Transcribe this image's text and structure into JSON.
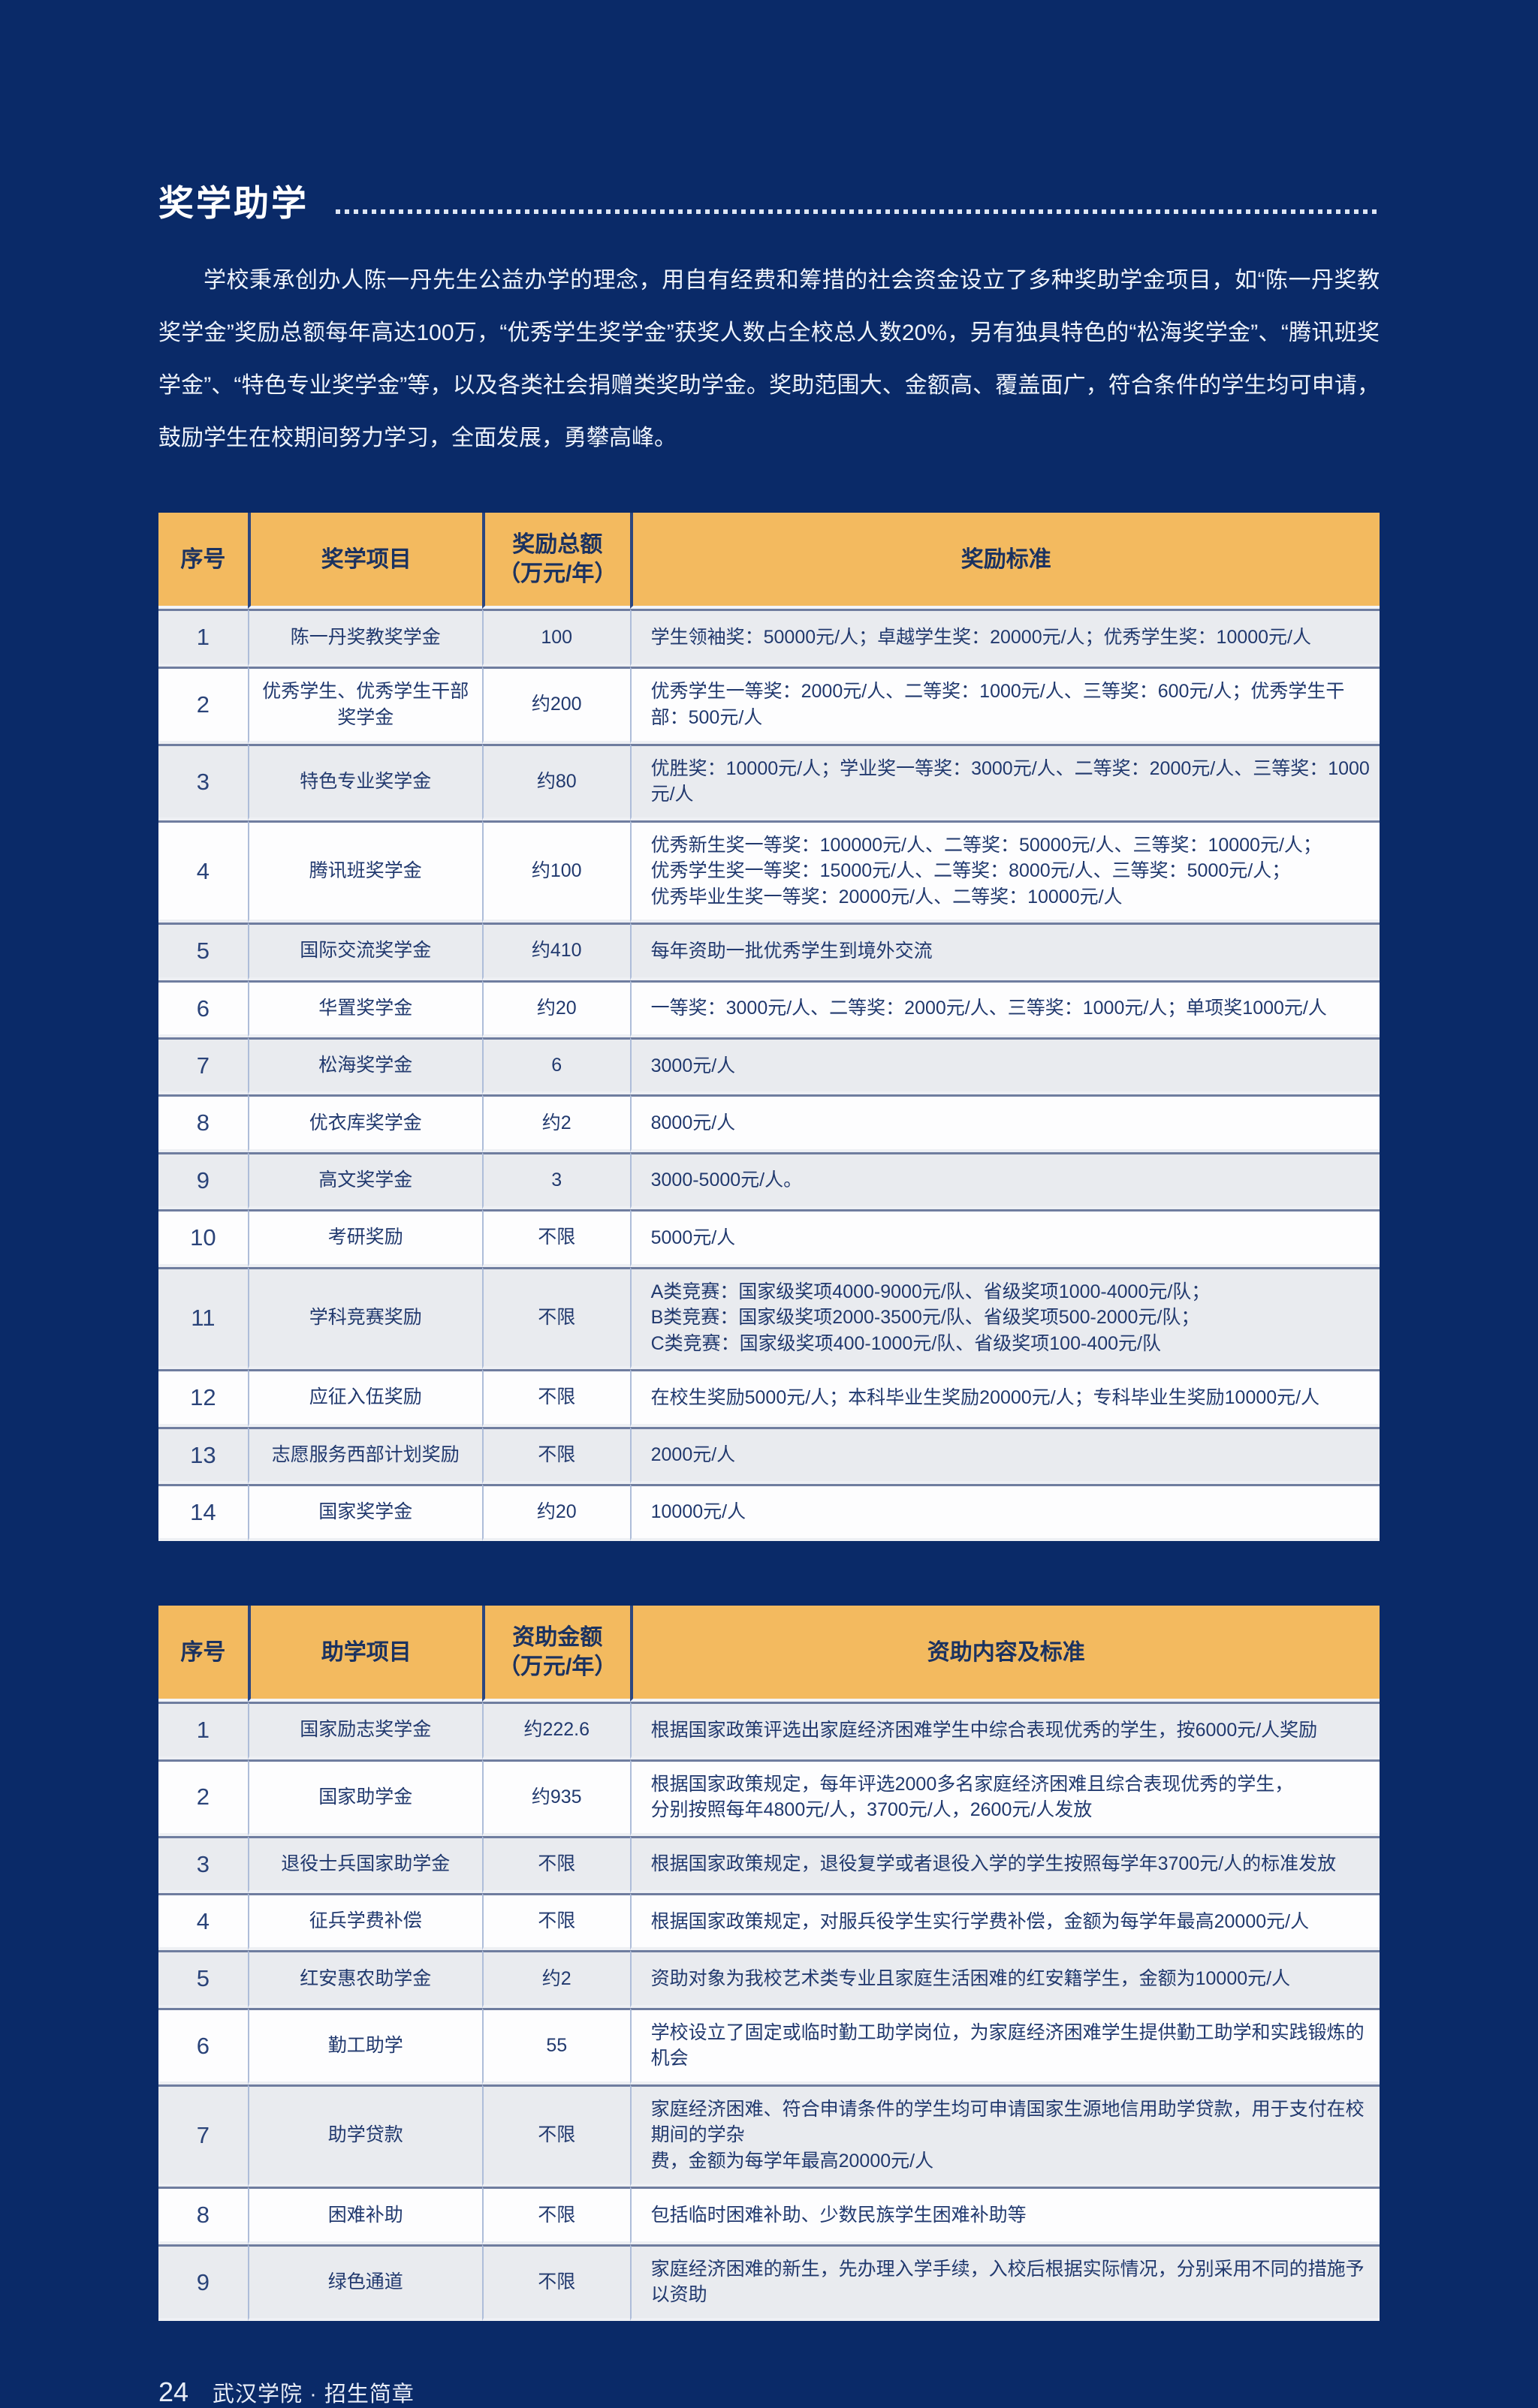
{
  "header": {
    "title": "奖学助学"
  },
  "intro": "学校秉承创办人陈一丹先生公益办学的理念，用自有经费和筹措的社会资金设立了多种奖助学金项目，如“陈一丹奖教奖学金”奖励总额每年高达100万，“优秀学生奖学金”获奖人数占全校总人数20%，另有独具特色的“松海奖学金”、“腾讯班奖学金”、“特色专业奖学金”等，以及各类社会捐赠类奖助学金。奖助范围大、金额高、覆盖面广，符合条件的学生均可申请，鼓励学生在校期间努力学习，全面发展，勇攀高峰。",
  "scholarship_table": {
    "headers": [
      "序号",
      "奖学项目",
      "奖励总额\n（万元/年）",
      "奖励标准"
    ],
    "rows": [
      [
        "1",
        "陈一丹奖教奖学金",
        "100",
        "学生领袖奖：50000元/人；卓越学生奖：20000元/人；优秀学生奖：10000元/人"
      ],
      [
        "2",
        "优秀学生、优秀学生干部奖学金",
        "约200",
        "优秀学生一等奖：2000元/人、二等奖：1000元/人、三等奖：600元/人；优秀学生干部：500元/人"
      ],
      [
        "3",
        "特色专业奖学金",
        "约80",
        "优胜奖：10000元/人；学业奖一等奖：3000元/人、二等奖：2000元/人、三等奖：1000元/人"
      ],
      [
        "4",
        "腾讯班奖学金",
        "约100",
        "优秀新生奖一等奖：100000元/人、二等奖：50000元/人、三等奖：10000元/人；\n优秀学生奖一等奖：15000元/人、二等奖：8000元/人、三等奖：5000元/人；\n优秀毕业生奖一等奖：20000元/人、二等奖：10000元/人"
      ],
      [
        "5",
        "国际交流奖学金",
        "约410",
        "每年资助一批优秀学生到境外交流"
      ],
      [
        "6",
        "华置奖学金",
        "约20",
        "一等奖：3000元/人、二等奖：2000元/人、三等奖：1000元/人；单项奖1000元/人"
      ],
      [
        "7",
        "松海奖学金",
        "6",
        "3000元/人"
      ],
      [
        "8",
        "优衣库奖学金",
        "约2",
        "8000元/人"
      ],
      [
        "9",
        "高文奖学金",
        "3",
        "3000-5000元/人。"
      ],
      [
        "10",
        "考研奖励",
        "不限",
        "5000元/人"
      ],
      [
        "11",
        "学科竞赛奖励",
        "不限",
        "A类竞赛：国家级奖项4000-9000元/队、省级奖项1000-4000元/队；\nB类竞赛：国家级奖项2000-3500元/队、省级奖项500-2000元/队；\nC类竞赛：国家级奖项400-1000元/队、省级奖项100-400元/队"
      ],
      [
        "12",
        "应征入伍奖励",
        "不限",
        "在校生奖励5000元/人；本科毕业生奖励20000元/人；专科毕业生奖励10000元/人"
      ],
      [
        "13",
        "志愿服务西部计划奖励",
        "不限",
        "2000元/人"
      ],
      [
        "14",
        "国家奖学金",
        "约20",
        "10000元/人"
      ]
    ]
  },
  "aid_table": {
    "headers": [
      "序号",
      "助学项目",
      "资助金额\n（万元/年）",
      "资助内容及标准"
    ],
    "rows": [
      [
        "1",
        "国家励志奖学金",
        "约222.6",
        "根据国家政策评选出家庭经济困难学生中综合表现优秀的学生，按6000元/人奖励"
      ],
      [
        "2",
        "国家助学金",
        "约935",
        "根据国家政策规定，每年评选2000多名家庭经济困难且综合表现优秀的学生，\n分别按照每年4800元/人，3700元/人，2600元/人发放"
      ],
      [
        "3",
        "退役士兵国家助学金",
        "不限",
        "根据国家政策规定，退役复学或者退役入学的学生按照每学年3700元/人的标准发放"
      ],
      [
        "4",
        "征兵学费补偿",
        "不限",
        "根据国家政策规定，对服兵役学生实行学费补偿，金额为每学年最高20000元/人"
      ],
      [
        "5",
        "红安惠农助学金",
        "约2",
        "资助对象为我校艺术类专业且家庭生活困难的红安籍学生，金额为10000元/人"
      ],
      [
        "6",
        "勤工助学",
        "55",
        "学校设立了固定或临时勤工助学岗位，为家庭经济困难学生提供勤工助学和实践锻炼的机会"
      ],
      [
        "7",
        "助学贷款",
        "不限",
        "家庭经济困难、符合申请条件的学生均可申请国家生源地信用助学贷款，用于支付在校期间的学杂\n费，金额为每学年最高20000元/人"
      ],
      [
        "8",
        "困难补助",
        "不限",
        "包括临时困难补助、少数民族学生困难补助等"
      ],
      [
        "9",
        "绿色通道",
        "不限",
        "家庭经济困难的新生，先办理入学手续，入校后根据实际情况，分别采用不同的措施予以资助"
      ]
    ]
  },
  "footer": {
    "page_number": "24",
    "brand": "武汉学院 · 招生简章"
  },
  "colors": {
    "page_background": "#0a2a68",
    "table_header_background": "#f3ba5f",
    "table_text": "#21396e",
    "row_alt_background": "#e9ebef",
    "title_text": "#ffffff"
  }
}
